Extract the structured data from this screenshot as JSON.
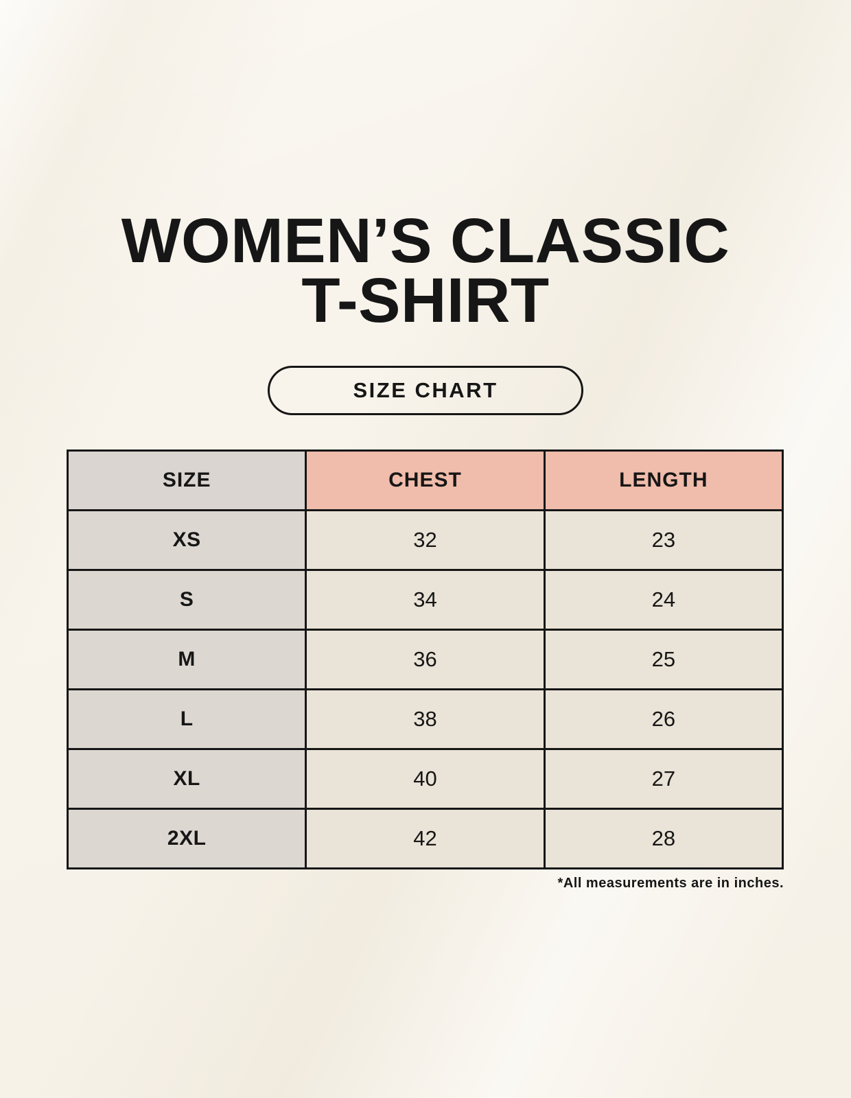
{
  "header": {
    "title_line1": "WOMEN’S CLASSIC",
    "title_line2": "T-SHIRT",
    "button_label": "SIZE CHART"
  },
  "chart_data": {
    "type": "table",
    "title": "WOMEN’S CLASSIC T-SHIRT SIZE CHART",
    "columns": [
      "SIZE",
      "CHEST",
      "LENGTH"
    ],
    "rows": [
      [
        "XS",
        "32",
        "23"
      ],
      [
        "S",
        "34",
        "24"
      ],
      [
        "M",
        "36",
        "25"
      ],
      [
        "L",
        "38",
        "26"
      ],
      [
        "XL",
        "40",
        "27"
      ],
      [
        "2XL",
        "42",
        "28"
      ]
    ],
    "units": "inches"
  },
  "footnote": "*All measurements are in inches.",
  "colors": {
    "background": "#f8f4ec",
    "text": "#161616",
    "table_border": "#161616",
    "header_size_bg": "#dbd5d1",
    "header_measure_bg": "#f0bcab",
    "size_column_bg": "#ddd7d2",
    "data_cell_bg": "#eae3d7"
  }
}
